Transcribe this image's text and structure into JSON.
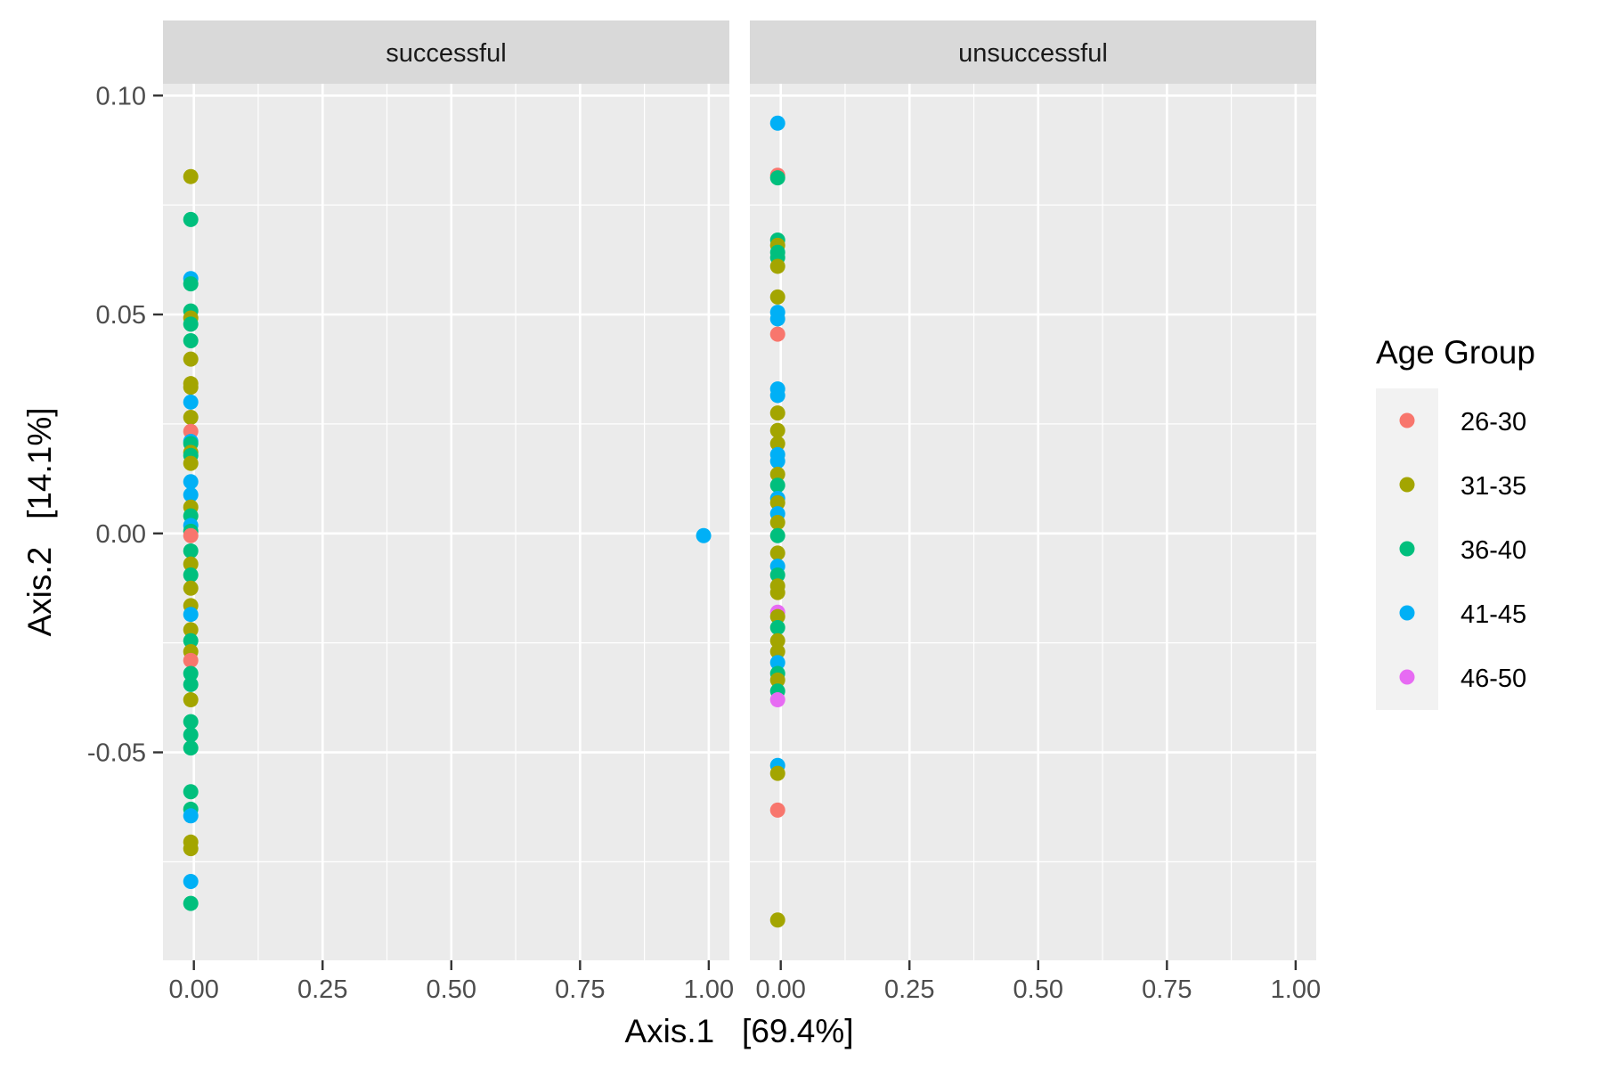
{
  "chart_data": {
    "type": "scatter",
    "facets": [
      "successful",
      "unsuccessful"
    ],
    "xlabel": "Axis.1   [69.4%]",
    "ylabel": "Axis.2   [14.1%]",
    "xlim": [
      -0.06,
      1.04
    ],
    "ylim": [
      -0.0975,
      0.1027
    ],
    "x_ticks": [
      0,
      0.25,
      0.5,
      0.75,
      1
    ],
    "x_tick_labels": [
      "0.00",
      "0.25",
      "0.50",
      "0.75",
      "1.00"
    ],
    "y_ticks": [
      -0.05,
      0,
      0.05,
      0.1
    ],
    "y_tick_labels": [
      "-0.05",
      "0.00",
      "0.05",
      "0.10"
    ],
    "grid": true,
    "legend": {
      "title": "Age Group",
      "position": "right",
      "entries": [
        {
          "label": "26-30",
          "color": "#F8766D"
        },
        {
          "label": "31-35",
          "color": "#A3A500"
        },
        {
          "label": "36-40",
          "color": "#00BF7D"
        },
        {
          "label": "41-45",
          "color": "#00B0F6"
        },
        {
          "label": "46-50",
          "color": "#E76BF3"
        }
      ]
    },
    "series": [
      {
        "facet": "successful",
        "points": [
          {
            "group": "31-35",
            "x": -0.006,
            "y": 0.0815
          },
          {
            "group": "36-40",
            "x": -0.006,
            "y": 0.0717
          },
          {
            "group": "41-45",
            "x": -0.006,
            "y": 0.0582
          },
          {
            "group": "36-40",
            "x": -0.006,
            "y": 0.057
          },
          {
            "group": "36-40",
            "x": -0.006,
            "y": 0.0508
          },
          {
            "group": "31-35",
            "x": -0.006,
            "y": 0.0492
          },
          {
            "group": "36-40",
            "x": -0.006,
            "y": 0.0478
          },
          {
            "group": "36-40",
            "x": -0.006,
            "y": 0.044
          },
          {
            "group": "31-35",
            "x": -0.006,
            "y": 0.0398
          },
          {
            "group": "31-35",
            "x": -0.006,
            "y": 0.0342
          },
          {
            "group": "31-35",
            "x": -0.006,
            "y": 0.0334
          },
          {
            "group": "41-45",
            "x": -0.006,
            "y": 0.03
          },
          {
            "group": "31-35",
            "x": -0.006,
            "y": 0.0265
          },
          {
            "group": "26-30",
            "x": -0.006,
            "y": 0.0233
          },
          {
            "group": "41-45",
            "x": -0.006,
            "y": 0.021
          },
          {
            "group": "36-40",
            "x": -0.006,
            "y": 0.0205
          },
          {
            "group": "31-35",
            "x": -0.006,
            "y": 0.0185
          },
          {
            "group": "36-40",
            "x": -0.006,
            "y": 0.0178
          },
          {
            "group": "31-35",
            "x": -0.006,
            "y": 0.016
          },
          {
            "group": "41-45",
            "x": -0.006,
            "y": 0.0118
          },
          {
            "group": "41-45",
            "x": -0.006,
            "y": 0.0088
          },
          {
            "group": "31-35",
            "x": -0.006,
            "y": 0.006
          },
          {
            "group": "36-40",
            "x": -0.006,
            "y": 0.004
          },
          {
            "group": "41-45",
            "x": -0.006,
            "y": 0.0018
          },
          {
            "group": "36-40",
            "x": -0.006,
            "y": 0.0005
          },
          {
            "group": "26-30",
            "x": -0.006,
            "y": -0.0005
          },
          {
            "group": "36-40",
            "x": -0.006,
            "y": -0.004
          },
          {
            "group": "31-35",
            "x": -0.006,
            "y": -0.007
          },
          {
            "group": "36-40",
            "x": -0.006,
            "y": -0.0095
          },
          {
            "group": "31-35",
            "x": -0.006,
            "y": -0.0125
          },
          {
            "group": "31-35",
            "x": -0.006,
            "y": -0.0165
          },
          {
            "group": "41-45",
            "x": -0.006,
            "y": -0.0185
          },
          {
            "group": "31-35",
            "x": -0.006,
            "y": -0.022
          },
          {
            "group": "36-40",
            "x": -0.006,
            "y": -0.0245
          },
          {
            "group": "31-35",
            "x": -0.006,
            "y": -0.027
          },
          {
            "group": "26-30",
            "x": -0.006,
            "y": -0.029
          },
          {
            "group": "36-40",
            "x": -0.006,
            "y": -0.032
          },
          {
            "group": "36-40",
            "x": -0.006,
            "y": -0.0345
          },
          {
            "group": "31-35",
            "x": -0.006,
            "y": -0.038
          },
          {
            "group": "36-40",
            "x": -0.006,
            "y": -0.043
          },
          {
            "group": "36-40",
            "x": -0.006,
            "y": -0.046
          },
          {
            "group": "36-40",
            "x": -0.006,
            "y": -0.049
          },
          {
            "group": "36-40",
            "x": -0.006,
            "y": -0.059
          },
          {
            "group": "36-40",
            "x": -0.006,
            "y": -0.063
          },
          {
            "group": "41-45",
            "x": -0.006,
            "y": -0.0645
          },
          {
            "group": "31-35",
            "x": -0.006,
            "y": -0.0705
          },
          {
            "group": "31-35",
            "x": -0.006,
            "y": -0.072
          },
          {
            "group": "41-45",
            "x": -0.006,
            "y": -0.0795
          },
          {
            "group": "36-40",
            "x": -0.006,
            "y": -0.0845
          },
          {
            "group": "41-45",
            "x": 0.99,
            "y": -0.0005
          }
        ]
      },
      {
        "facet": "unsuccessful",
        "points": [
          {
            "group": "41-45",
            "x": -0.006,
            "y": 0.0937
          },
          {
            "group": "26-30",
            "x": -0.006,
            "y": 0.0818
          },
          {
            "group": "36-40",
            "x": -0.006,
            "y": 0.0812
          },
          {
            "group": "36-40",
            "x": -0.006,
            "y": 0.067
          },
          {
            "group": "31-35",
            "x": -0.006,
            "y": 0.0658
          },
          {
            "group": "36-40",
            "x": -0.006,
            "y": 0.0642
          },
          {
            "group": "36-40",
            "x": -0.006,
            "y": 0.063
          },
          {
            "group": "31-35",
            "x": -0.006,
            "y": 0.061
          },
          {
            "group": "31-35",
            "x": -0.006,
            "y": 0.054
          },
          {
            "group": "41-45",
            "x": -0.006,
            "y": 0.0505
          },
          {
            "group": "41-45",
            "x": -0.006,
            "y": 0.049
          },
          {
            "group": "26-30",
            "x": -0.006,
            "y": 0.0455
          },
          {
            "group": "41-45",
            "x": -0.006,
            "y": 0.033
          },
          {
            "group": "41-45",
            "x": -0.006,
            "y": 0.0315
          },
          {
            "group": "31-35",
            "x": -0.006,
            "y": 0.0275
          },
          {
            "group": "31-35",
            "x": -0.006,
            "y": 0.0235
          },
          {
            "group": "31-35",
            "x": -0.006,
            "y": 0.0205
          },
          {
            "group": "41-45",
            "x": -0.006,
            "y": 0.018
          },
          {
            "group": "41-45",
            "x": -0.006,
            "y": 0.0165
          },
          {
            "group": "31-35",
            "x": -0.006,
            "y": 0.0135
          },
          {
            "group": "36-40",
            "x": -0.006,
            "y": 0.011
          },
          {
            "group": "41-45",
            "x": -0.006,
            "y": 0.008
          },
          {
            "group": "31-35",
            "x": -0.006,
            "y": 0.007
          },
          {
            "group": "41-45",
            "x": -0.006,
            "y": 0.0045
          },
          {
            "group": "31-35",
            "x": -0.006,
            "y": 0.0025
          },
          {
            "group": "36-40",
            "x": -0.006,
            "y": -0.0005
          },
          {
            "group": "31-35",
            "x": -0.006,
            "y": -0.0045
          },
          {
            "group": "41-45",
            "x": -0.006,
            "y": -0.0075
          },
          {
            "group": "36-40",
            "x": -0.006,
            "y": -0.0095
          },
          {
            "group": "31-35",
            "x": -0.006,
            "y": -0.012
          },
          {
            "group": "31-35",
            "x": -0.006,
            "y": -0.0135
          },
          {
            "group": "46-50",
            "x": -0.006,
            "y": -0.018
          },
          {
            "group": "31-35",
            "x": -0.006,
            "y": -0.019
          },
          {
            "group": "36-40",
            "x": -0.006,
            "y": -0.0215
          },
          {
            "group": "31-35",
            "x": -0.006,
            "y": -0.0245
          },
          {
            "group": "31-35",
            "x": -0.006,
            "y": -0.027
          },
          {
            "group": "41-45",
            "x": -0.006,
            "y": -0.0295
          },
          {
            "group": "36-40",
            "x": -0.006,
            "y": -0.032
          },
          {
            "group": "31-35",
            "x": -0.006,
            "y": -0.0335
          },
          {
            "group": "36-40",
            "x": -0.006,
            "y": -0.036
          },
          {
            "group": "46-50",
            "x": -0.006,
            "y": -0.038
          },
          {
            "group": "41-45",
            "x": -0.006,
            "y": -0.053
          },
          {
            "group": "31-35",
            "x": -0.006,
            "y": -0.0548
          },
          {
            "group": "26-30",
            "x": -0.006,
            "y": -0.0632
          },
          {
            "group": "31-35",
            "x": -0.006,
            "y": -0.0883
          }
        ]
      }
    ]
  }
}
